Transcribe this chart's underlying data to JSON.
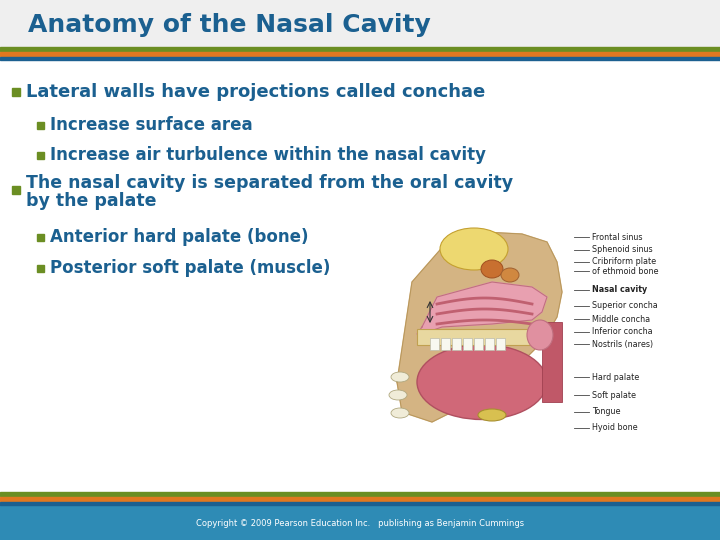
{
  "title": "Anatomy of the Nasal Cavity",
  "title_color": "#1B6090",
  "title_fontsize": 18,
  "bg_color": "#FFFFFF",
  "bullet_color": "#6B8E23",
  "text_color": "#1B6090",
  "bullet1_text": "Lateral walls have projections called conchae",
  "bullet2_text": "Increase surface area",
  "bullet3_text": "Increase air turbulence within the nasal cavity",
  "bullet4_line1": "The nasal cavity is separated from the oral cavity",
  "bullet4_line2": "by the palate",
  "bullet5_text": "Anterior hard palate (bone)",
  "bullet6_text": "Posterior soft palate (muscle)",
  "footer_text": "Copyright © 2009 Pearson Education Inc.   publishing as Benjamin Cummings",
  "footer_bg": "#2E8BB5",
  "footer_text_color": "#FFFFFF",
  "stripe_green": "#6B8E23",
  "stripe_orange": "#E07820",
  "stripe_blue": "#1B6090",
  "label_color": "#222222",
  "diagram_labels": [
    "Frontal sinus",
    "Sphenoid sinus",
    "Cribriform plate",
    "of ethmoid bone",
    "Nasal cavity",
    "Superior concha",
    "Middle concha",
    "Inferior concha",
    "Nostrils (nares)",
    "Hard palate",
    "Soft palate",
    "Tongue",
    "Hyoid bone"
  ]
}
